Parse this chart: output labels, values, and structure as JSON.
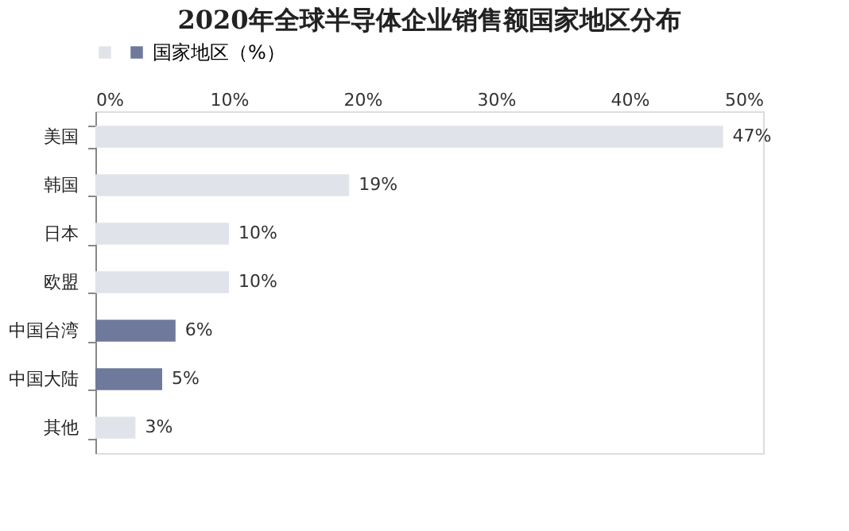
{
  "chart_data": {
    "type": "bar",
    "orientation": "horizontal",
    "title": "2020年全球半导体企业销售额国家地区分布",
    "categories": [
      "美国",
      "韩国",
      "日本",
      "欧盟",
      "中国台湾",
      "中国大陆",
      "其他"
    ],
    "series": [
      {
        "name": null,
        "color": "#e1e3ea",
        "values": [
          47,
          19,
          10,
          10,
          null,
          null,
          3
        ],
        "value_labels": [
          "47%",
          "19%",
          "10%",
          "10%",
          null,
          null,
          "3%"
        ]
      },
      {
        "name": "国家地区（%）",
        "color": "#6f799c",
        "values": [
          null,
          null,
          null,
          null,
          6,
          5,
          null
        ],
        "value_labels": [
          null,
          null,
          null,
          null,
          "6%",
          "5%",
          null
        ]
      }
    ],
    "xlim": [
      0,
      50
    ],
    "xticks": [
      {
        "value": 0,
        "label": "0%"
      },
      {
        "value": 10,
        "label": "10%"
      },
      {
        "value": 20,
        "label": "20%"
      },
      {
        "value": 30,
        "label": "30%"
      },
      {
        "value": 40,
        "label": "40%"
      },
      {
        "value": 50,
        "label": "50%"
      }
    ],
    "grid": false,
    "legend": "top"
  }
}
